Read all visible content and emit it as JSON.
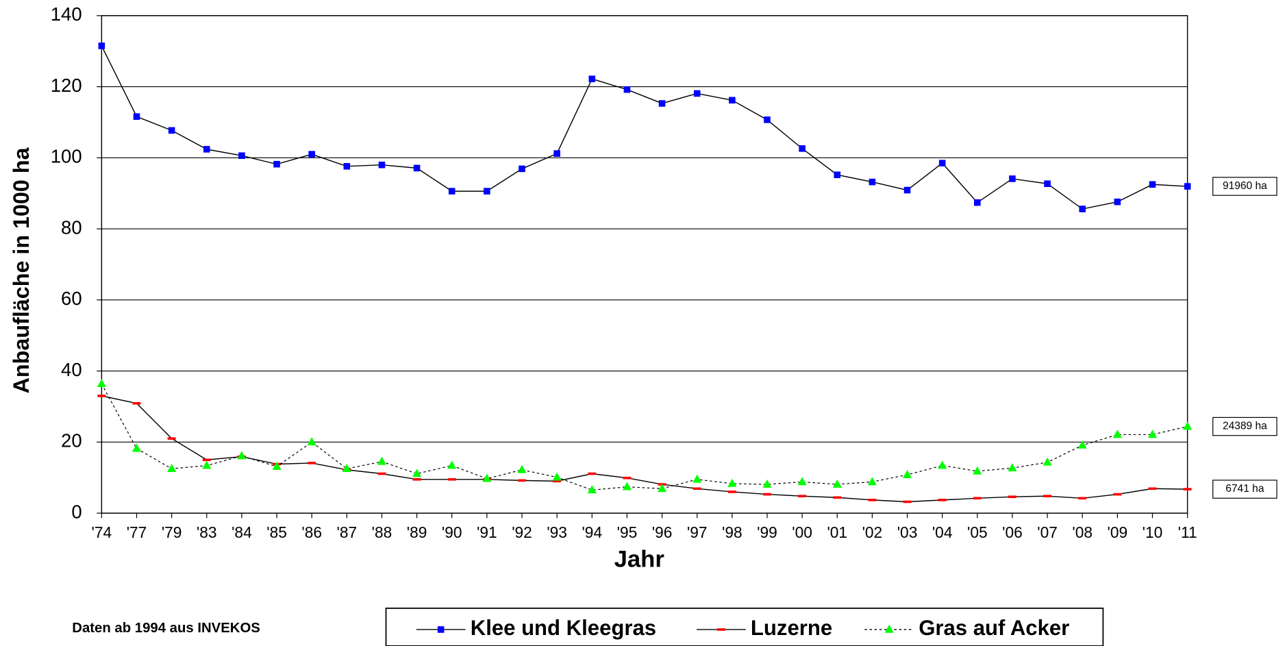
{
  "chart_data": {
    "type": "line",
    "y_label": "Anbaufläche in 1000 ha",
    "x_label": "Jahr",
    "note": "Daten ab 1994 aus INVEKOS",
    "categories": [
      "'74",
      "'77",
      "'79",
      "'83",
      "'84",
      "'85",
      "'86",
      "'87",
      "'88",
      "'89",
      "'90",
      "'91",
      "'92",
      "'93",
      "'94",
      "'95",
      "'96",
      "'97",
      "'98",
      "'99",
      "'00",
      "'01",
      "'02",
      "'03",
      "'04",
      "'05",
      "'06",
      "'07",
      "'08",
      "'09",
      "'10",
      "'11"
    ],
    "series": [
      {
        "name": "Klee und Kleegras",
        "color": "#0000ff",
        "marker": "square",
        "dash": false,
        "values": [
          131.5,
          111.6,
          107.7,
          102.4,
          100.6,
          98.2,
          101,
          97.6,
          98,
          97.1,
          90.6,
          90.6,
          96.9,
          101.2,
          122.2,
          119.2,
          115.3,
          118.1,
          116.2,
          110.7,
          102.6,
          95.2,
          93.2,
          90.9,
          98.5,
          87.4,
          94.1,
          92.7,
          85.6,
          87.6,
          92.5,
          91.96
        ]
      },
      {
        "name": "Luzerne",
        "color": "#ff0000",
        "marker": "dash",
        "dash": false,
        "values": [
          33,
          30.9,
          21,
          15,
          15.9,
          13.8,
          14.1,
          12.2,
          11.1,
          9.5,
          9.5,
          9.5,
          9.2,
          9,
          11.1,
          9.9,
          8.1,
          6.9,
          6,
          5.3,
          4.8,
          4.4,
          3.7,
          3.2,
          3.7,
          4.2,
          4.6,
          4.8,
          4.2,
          5.3,
          6.9,
          6.741
        ]
      },
      {
        "name": "Gras auf Acker",
        "color": "#00ff00",
        "marker": "triangle",
        "dash": true,
        "values": [
          36.4,
          18.2,
          12.5,
          13.4,
          16.1,
          13.1,
          20,
          12.5,
          14.5,
          11.1,
          13.4,
          9.7,
          12.2,
          10.1,
          6.5,
          7.4,
          6.9,
          9.5,
          8.3,
          8.1,
          8.8,
          8.1,
          8.8,
          10.8,
          13.4,
          11.8,
          12.7,
          14.3,
          19.1,
          22.1,
          22.1,
          24.389
        ]
      }
    ],
    "annotations": [
      "91960 ha",
      "6741 ha",
      "24389 ha"
    ],
    "ylim": [
      0,
      140
    ],
    "yticks": [
      0,
      20,
      40,
      60,
      80,
      100,
      120,
      140
    ],
    "grid": true
  }
}
